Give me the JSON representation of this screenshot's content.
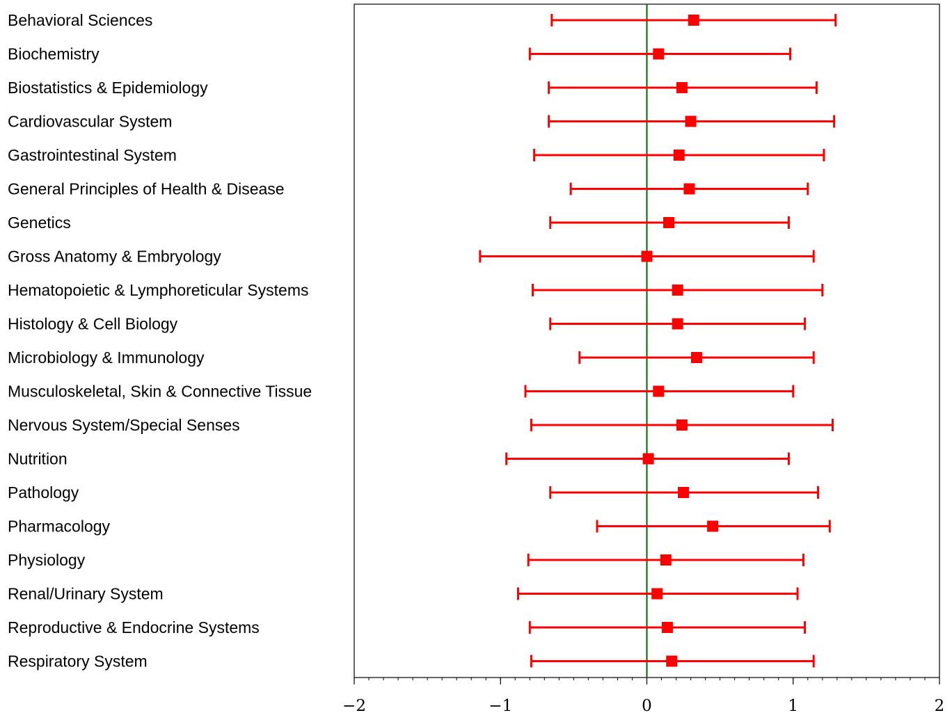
{
  "chart_data": {
    "type": "forest",
    "xlim": [
      -2,
      2
    ],
    "x_ticks": [
      {
        "value": -2,
        "label": "−2"
      },
      {
        "value": -1,
        "label": "−1"
      },
      {
        "value": 0,
        "label": "0"
      },
      {
        "value": 1,
        "label": "1"
      },
      {
        "value": 2,
        "label": "2"
      }
    ],
    "minor_tick_step": 0.1,
    "reference_line": 0,
    "colors": {
      "estimate": "#ff0000",
      "reference": "#006400",
      "axis": "#000000"
    },
    "grid": false,
    "rows": [
      {
        "label": "Behavioral Sciences",
        "estimate": 0.32,
        "lower": -0.65,
        "upper": 1.29
      },
      {
        "label": "Biochemistry",
        "estimate": 0.08,
        "lower": -0.8,
        "upper": 0.98
      },
      {
        "label": "Biostatistics & Epidemiology",
        "estimate": 0.24,
        "lower": -0.67,
        "upper": 1.16
      },
      {
        "label": "Cardiovascular System",
        "estimate": 0.3,
        "lower": -0.67,
        "upper": 1.28
      },
      {
        "label": "Gastrointestinal System",
        "estimate": 0.22,
        "lower": -0.77,
        "upper": 1.21
      },
      {
        "label": "General Principles of Health & Disease",
        "estimate": 0.29,
        "lower": -0.52,
        "upper": 1.1
      },
      {
        "label": "Genetics",
        "estimate": 0.15,
        "lower": -0.66,
        "upper": 0.97
      },
      {
        "label": "Gross Anatomy & Embryology",
        "estimate": 0.0,
        "lower": -1.14,
        "upper": 1.14
      },
      {
        "label": "Hematopoietic & Lymphoreticular Systems",
        "estimate": 0.21,
        "lower": -0.78,
        "upper": 1.2
      },
      {
        "label": "Histology & Cell Biology",
        "estimate": 0.21,
        "lower": -0.66,
        "upper": 1.08
      },
      {
        "label": "Microbiology & Immunology",
        "estimate": 0.34,
        "lower": -0.46,
        "upper": 1.14
      },
      {
        "label": "Musculoskeletal, Skin & Connective Tissue",
        "estimate": 0.08,
        "lower": -0.83,
        "upper": 1.0
      },
      {
        "label": "Nervous System/Special Senses",
        "estimate": 0.24,
        "lower": -0.79,
        "upper": 1.27
      },
      {
        "label": "Nutrition",
        "estimate": 0.01,
        "lower": -0.96,
        "upper": 0.97
      },
      {
        "label": "Pathology",
        "estimate": 0.25,
        "lower": -0.66,
        "upper": 1.17
      },
      {
        "label": "Pharmacology",
        "estimate": 0.45,
        "lower": -0.34,
        "upper": 1.25
      },
      {
        "label": "Physiology",
        "estimate": 0.13,
        "lower": -0.81,
        "upper": 1.07
      },
      {
        "label": "Renal/Urinary System",
        "estimate": 0.07,
        "lower": -0.88,
        "upper": 1.03
      },
      {
        "label": "Reproductive & Endocrine Systems",
        "estimate": 0.14,
        "lower": -0.8,
        "upper": 1.08
      },
      {
        "label": "Respiratory System",
        "estimate": 0.17,
        "lower": -0.79,
        "upper": 1.14
      }
    ]
  }
}
